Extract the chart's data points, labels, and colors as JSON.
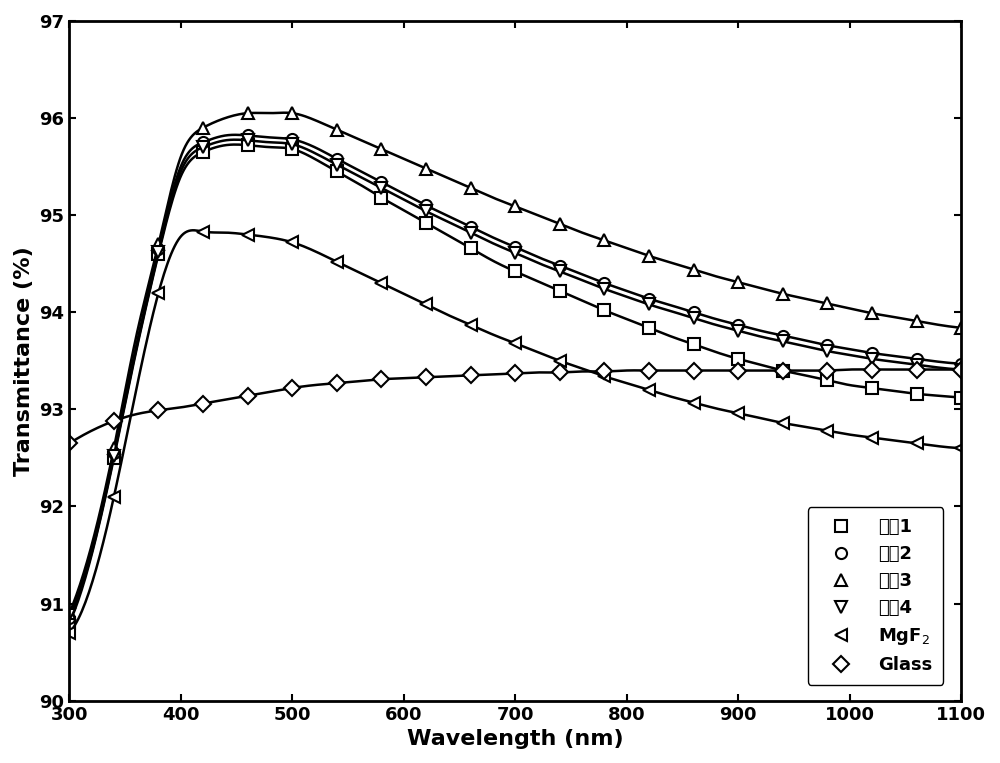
{
  "title": "",
  "xlabel": "Wavelength (nm)",
  "ylabel": "Transmittance (%)",
  "xlim": [
    300,
    1100
  ],
  "ylim": [
    90,
    97
  ],
  "xticks": [
    300,
    400,
    500,
    600,
    700,
    800,
    900,
    1000,
    1100
  ],
  "yticks": [
    90,
    91,
    92,
    93,
    94,
    95,
    96,
    97
  ],
  "series": [
    {
      "label": "实例1",
      "marker": "s",
      "color": "#000000",
      "hollow": true,
      "x": [
        300,
        320,
        340,
        360,
        380,
        400,
        420,
        440,
        460,
        480,
        500,
        520,
        540,
        560,
        580,
        600,
        620,
        640,
        660,
        680,
        700,
        720,
        740,
        760,
        780,
        800,
        820,
        840,
        860,
        880,
        900,
        920,
        940,
        960,
        980,
        1000,
        1020,
        1040,
        1060,
        1080,
        1100
      ],
      "y": [
        90.8,
        91.5,
        92.5,
        93.6,
        94.6,
        95.4,
        95.65,
        95.72,
        95.72,
        95.7,
        95.68,
        95.58,
        95.45,
        95.32,
        95.18,
        95.05,
        94.92,
        94.79,
        94.66,
        94.53,
        94.42,
        94.32,
        94.22,
        94.12,
        94.02,
        93.93,
        93.84,
        93.75,
        93.67,
        93.59,
        93.52,
        93.46,
        93.4,
        93.35,
        93.3,
        93.25,
        93.22,
        93.19,
        93.16,
        93.14,
        93.12
      ]
    },
    {
      "label": "实例2",
      "marker": "o",
      "color": "#000000",
      "hollow": true,
      "x": [
        300,
        320,
        340,
        360,
        380,
        400,
        420,
        440,
        460,
        480,
        500,
        520,
        540,
        560,
        580,
        600,
        620,
        640,
        660,
        680,
        700,
        720,
        740,
        760,
        780,
        800,
        820,
        840,
        860,
        880,
        900,
        920,
        940,
        960,
        980,
        1000,
        1020,
        1040,
        1060,
        1080,
        1100
      ],
      "y": [
        90.85,
        91.55,
        92.55,
        93.65,
        94.65,
        95.5,
        95.75,
        95.82,
        95.82,
        95.8,
        95.78,
        95.7,
        95.58,
        95.46,
        95.34,
        95.22,
        95.1,
        94.99,
        94.88,
        94.77,
        94.67,
        94.57,
        94.48,
        94.39,
        94.3,
        94.22,
        94.14,
        94.07,
        94.0,
        93.93,
        93.87,
        93.81,
        93.76,
        93.71,
        93.66,
        93.62,
        93.58,
        93.55,
        93.52,
        93.49,
        93.47
      ]
    },
    {
      "label": "实例3",
      "marker": "^",
      "color": "#000000",
      "hollow": true,
      "x": [
        300,
        320,
        340,
        360,
        380,
        400,
        420,
        440,
        460,
        480,
        500,
        520,
        540,
        560,
        580,
        600,
        620,
        640,
        660,
        680,
        700,
        720,
        740,
        760,
        780,
        800,
        820,
        840,
        860,
        880,
        900,
        920,
        940,
        960,
        980,
        1000,
        1020,
        1040,
        1060,
        1080,
        1100
      ],
      "y": [
        90.9,
        91.6,
        92.6,
        93.75,
        94.7,
        95.6,
        95.9,
        96.0,
        96.05,
        96.05,
        96.05,
        95.98,
        95.88,
        95.78,
        95.68,
        95.58,
        95.48,
        95.38,
        95.28,
        95.18,
        95.09,
        95.0,
        94.91,
        94.82,
        94.74,
        94.66,
        94.58,
        94.51,
        94.44,
        94.37,
        94.31,
        94.25,
        94.19,
        94.14,
        94.09,
        94.04,
        93.99,
        93.95,
        93.91,
        93.87,
        93.84
      ]
    },
    {
      "label": "实例4",
      "marker": "v",
      "color": "#000000",
      "hollow": true,
      "x": [
        300,
        320,
        340,
        360,
        380,
        400,
        420,
        440,
        460,
        480,
        500,
        520,
        540,
        560,
        580,
        600,
        620,
        640,
        660,
        680,
        700,
        720,
        740,
        760,
        780,
        800,
        820,
        840,
        860,
        880,
        900,
        920,
        940,
        960,
        980,
        1000,
        1020,
        1040,
        1060,
        1080,
        1100
      ],
      "y": [
        90.88,
        91.52,
        92.52,
        93.62,
        94.62,
        95.45,
        95.7,
        95.77,
        95.77,
        95.75,
        95.73,
        95.64,
        95.52,
        95.4,
        95.28,
        95.16,
        95.04,
        94.93,
        94.82,
        94.71,
        94.61,
        94.51,
        94.42,
        94.33,
        94.24,
        94.16,
        94.08,
        94.01,
        93.94,
        93.87,
        93.81,
        93.75,
        93.7,
        93.65,
        93.6,
        93.56,
        93.52,
        93.49,
        93.46,
        93.43,
        93.41
      ]
    },
    {
      "label": "MgF$_2$",
      "marker": "<",
      "color": "#000000",
      "hollow": true,
      "x": [
        300,
        320,
        340,
        360,
        380,
        400,
        420,
        440,
        460,
        480,
        500,
        520,
        540,
        560,
        580,
        600,
        620,
        640,
        660,
        680,
        700,
        720,
        740,
        760,
        780,
        800,
        820,
        840,
        860,
        880,
        900,
        920,
        940,
        960,
        980,
        1000,
        1020,
        1040,
        1060,
        1080,
        1100
      ],
      "y": [
        90.7,
        91.2,
        92.1,
        93.2,
        94.2,
        94.78,
        94.83,
        94.82,
        94.8,
        94.77,
        94.72,
        94.63,
        94.52,
        94.41,
        94.3,
        94.19,
        94.08,
        93.97,
        93.87,
        93.77,
        93.68,
        93.59,
        93.5,
        93.42,
        93.34,
        93.27,
        93.2,
        93.13,
        93.07,
        93.01,
        92.96,
        92.91,
        92.86,
        92.82,
        92.78,
        92.74,
        92.71,
        92.68,
        92.65,
        92.62,
        92.6
      ]
    },
    {
      "label": "Glass",
      "marker": "D",
      "color": "#000000",
      "hollow": true,
      "x": [
        300,
        320,
        340,
        360,
        380,
        400,
        420,
        440,
        460,
        480,
        500,
        520,
        540,
        560,
        580,
        600,
        620,
        640,
        660,
        680,
        700,
        720,
        740,
        760,
        780,
        800,
        820,
        840,
        860,
        880,
        900,
        920,
        940,
        960,
        980,
        1000,
        1020,
        1040,
        1060,
        1080,
        1100
      ],
      "y": [
        92.65,
        92.78,
        92.88,
        92.95,
        92.99,
        93.02,
        93.06,
        93.1,
        93.14,
        93.18,
        93.22,
        93.25,
        93.27,
        93.29,
        93.31,
        93.32,
        93.33,
        93.34,
        93.35,
        93.36,
        93.37,
        93.38,
        93.38,
        93.39,
        93.39,
        93.4,
        93.4,
        93.4,
        93.4,
        93.4,
        93.4,
        93.4,
        93.4,
        93.4,
        93.4,
        93.41,
        93.41,
        93.41,
        93.41,
        93.41,
        93.41
      ]
    }
  ],
  "marker_every": 100,
  "linewidth": 1.8,
  "markersize": 8,
  "font_size_label": 16,
  "font_size_tick": 13,
  "font_size_legend": 13
}
